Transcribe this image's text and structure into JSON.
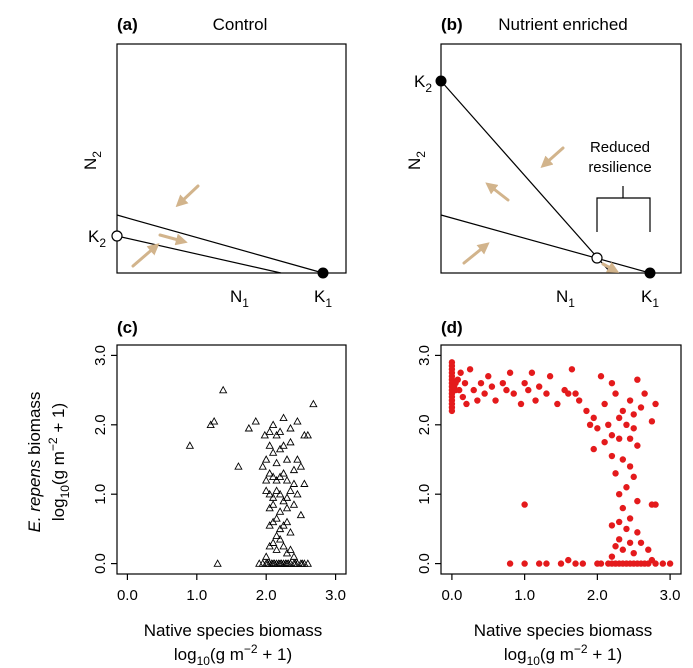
{
  "colors": {
    "arrow": "#d2b48c",
    "native_points": "#e41a1c",
    "control_points": "#000000"
  },
  "panel_a": {
    "letter": "(a)",
    "title": "Control",
    "x_symbol": "N",
    "x_sub": "1",
    "y_symbol": "N",
    "y_sub": "2",
    "k1_label": "K",
    "k1_sub": "1",
    "k2_label": "K",
    "k2_sub": "2"
  },
  "panel_b": {
    "letter": "(b)",
    "title": "Nutrient enriched",
    "x_symbol": "N",
    "x_sub": "1",
    "y_symbol": "N",
    "y_sub": "2",
    "k1_label": "K",
    "k1_sub": "1",
    "k2_label": "K",
    "k2_sub": "2",
    "annotation_line1": "Reduced",
    "annotation_line2": "resilience"
  },
  "panel_c": {
    "letter": "(c)"
  },
  "panel_d": {
    "letter": "(d)"
  },
  "y_axis_title": {
    "species": "E. repens",
    "word": "biomass",
    "unit": "log",
    "unit_base": "10",
    "unit_rest": "(g m",
    "unit_exp": "−2",
    "unit_end": " + 1)"
  },
  "x_axis_title": {
    "line1": "Native species biomass",
    "unit": "log",
    "unit_base": "10",
    "unit_rest": "(g m",
    "unit_exp": "−2",
    "unit_end": " + 1)"
  },
  "chart_data": [
    {
      "panel": "c",
      "type": "scatter",
      "marker": "open-triangle",
      "xlim": [
        -0.15,
        3.15
      ],
      "ylim": [
        -0.15,
        3.15
      ],
      "x_ticks": [
        "0.0",
        "1.0",
        "2.0",
        "3.0"
      ],
      "y_ticks": [
        "0.0",
        "1.0",
        "2.0",
        "3.0"
      ],
      "points": [
        [
          0.9,
          1.7
        ],
        [
          1.2,
          2.0
        ],
        [
          1.25,
          2.05
        ],
        [
          1.38,
          2.5
        ],
        [
          1.3,
          0.0
        ],
        [
          1.6,
          1.4
        ],
        [
          1.75,
          1.95
        ],
        [
          1.85,
          2.05
        ],
        [
          1.98,
          1.85
        ],
        [
          2.05,
          1.9
        ],
        [
          2.1,
          2.0
        ],
        [
          2.15,
          1.85
        ],
        [
          2.2,
          1.9
        ],
        [
          2.25,
          2.1
        ],
        [
          2.35,
          1.95
        ],
        [
          2.45,
          2.05
        ],
        [
          2.0,
          1.5
        ],
        [
          2.05,
          1.7
        ],
        [
          2.1,
          1.6
        ],
        [
          2.15,
          1.45
        ],
        [
          2.2,
          1.65
        ],
        [
          2.25,
          1.7
        ],
        [
          2.3,
          1.5
        ],
        [
          2.35,
          1.75
        ],
        [
          2.4,
          1.35
        ],
        [
          2.5,
          1.4
        ],
        [
          2.55,
          1.85
        ],
        [
          2.6,
          1.85
        ],
        [
          2.68,
          2.3
        ],
        [
          2.45,
          1.5
        ],
        [
          1.95,
          1.4
        ],
        [
          2.05,
          1.3
        ],
        [
          2.0,
          1.2
        ],
        [
          2.1,
          1.25
        ],
        [
          2.15,
          1.2
        ],
        [
          2.2,
          1.25
        ],
        [
          2.25,
          1.3
        ],
        [
          2.3,
          1.2
        ],
        [
          2.4,
          1.15
        ],
        [
          2.55,
          1.15
        ],
        [
          2.0,
          1.05
        ],
        [
          2.05,
          1.0
        ],
        [
          2.1,
          0.95
        ],
        [
          2.15,
          1.05
        ],
        [
          2.2,
          1.0
        ],
        [
          2.3,
          0.95
        ],
        [
          2.35,
          1.05
        ],
        [
          2.45,
          1.0
        ],
        [
          2.05,
          0.8
        ],
        [
          2.1,
          0.85
        ],
        [
          2.2,
          0.75
        ],
        [
          2.25,
          0.9
        ],
        [
          2.3,
          0.8
        ],
        [
          2.4,
          0.85
        ],
        [
          2.5,
          0.7
        ],
        [
          2.15,
          0.65
        ],
        [
          2.05,
          0.55
        ],
        [
          2.1,
          0.6
        ],
        [
          2.2,
          0.5
        ],
        [
          2.25,
          0.55
        ],
        [
          2.3,
          0.6
        ],
        [
          2.35,
          0.45
        ],
        [
          2.15,
          0.4
        ],
        [
          2.2,
          0.35
        ],
        [
          2.05,
          0.25
        ],
        [
          2.1,
          0.3
        ],
        [
          2.15,
          0.2
        ],
        [
          2.25,
          0.25
        ],
        [
          2.3,
          0.15
        ],
        [
          2.35,
          0.2
        ],
        [
          2.0,
          0.1
        ],
        [
          2.4,
          0.1
        ],
        [
          1.9,
          0.0
        ],
        [
          1.95,
          0.0
        ],
        [
          2.0,
          0.0
        ],
        [
          2.05,
          0.0
        ],
        [
          2.1,
          0.0
        ],
        [
          2.15,
          0.0
        ],
        [
          2.2,
          0.0
        ],
        [
          2.25,
          0.0
        ],
        [
          2.3,
          0.0
        ],
        [
          2.35,
          0.0
        ],
        [
          2.4,
          0.0
        ],
        [
          2.45,
          0.0
        ],
        [
          2.5,
          0.0
        ],
        [
          2.55,
          0.0
        ],
        [
          2.6,
          0.0
        ],
        [
          2.02,
          0.0
        ],
        [
          2.12,
          0.0
        ],
        [
          2.22,
          0.0
        ],
        [
          2.32,
          0.0
        ],
        [
          2.42,
          0.0
        ],
        [
          2.52,
          0.0
        ],
        [
          2.08,
          0.0
        ],
        [
          2.18,
          0.0
        ],
        [
          2.28,
          0.0
        ]
      ]
    },
    {
      "panel": "d",
      "type": "scatter",
      "marker": "filled-circle",
      "xlim": [
        -0.15,
        3.15
      ],
      "ylim": [
        -0.15,
        3.15
      ],
      "x_ticks": [
        "0.0",
        "1.0",
        "2.0",
        "3.0"
      ],
      "y_ticks": [
        "0.0",
        "1.0",
        "2.0",
        "3.0"
      ],
      "points": [
        [
          0.0,
          2.9
        ],
        [
          0.0,
          2.85
        ],
        [
          0.0,
          2.8
        ],
        [
          0.0,
          2.75
        ],
        [
          0.0,
          2.7
        ],
        [
          0.0,
          2.65
        ],
        [
          0.0,
          2.6
        ],
        [
          0.0,
          2.55
        ],
        [
          0.0,
          2.5
        ],
        [
          0.0,
          2.45
        ],
        [
          0.0,
          2.4
        ],
        [
          0.0,
          2.35
        ],
        [
          0.0,
          2.3
        ],
        [
          0.0,
          2.25
        ],
        [
          0.0,
          2.2
        ],
        [
          0.02,
          2.62
        ],
        [
          0.03,
          2.55
        ],
        [
          0.05,
          2.6
        ],
        [
          0.05,
          2.5
        ],
        [
          0.08,
          2.65
        ],
        [
          0.1,
          2.5
        ],
        [
          0.12,
          2.75
        ],
        [
          0.15,
          2.4
        ],
        [
          0.18,
          2.6
        ],
        [
          0.2,
          2.3
        ],
        [
          0.25,
          2.8
        ],
        [
          0.3,
          2.5
        ],
        [
          0.35,
          2.35
        ],
        [
          0.4,
          2.6
        ],
        [
          0.45,
          2.45
        ],
        [
          0.5,
          2.7
        ],
        [
          0.55,
          2.55
        ],
        [
          0.6,
          2.35
        ],
        [
          0.7,
          2.6
        ],
        [
          0.75,
          2.5
        ],
        [
          0.8,
          2.75
        ],
        [
          0.85,
          2.45
        ],
        [
          0.95,
          2.3
        ],
        [
          1.0,
          2.6
        ],
        [
          1.05,
          2.5
        ],
        [
          1.1,
          2.75
        ],
        [
          1.15,
          2.35
        ],
        [
          1.2,
          2.55
        ],
        [
          1.3,
          2.45
        ],
        [
          1.35,
          2.7
        ],
        [
          1.45,
          2.3
        ],
        [
          1.55,
          2.5
        ],
        [
          1.6,
          2.45
        ],
        [
          1.65,
          2.8
        ],
        [
          1.7,
          2.45
        ],
        [
          1.75,
          2.35
        ],
        [
          1.85,
          2.2
        ],
        [
          1.9,
          2.0
        ],
        [
          1.95,
          2.1
        ],
        [
          2.0,
          1.95
        ],
        [
          2.05,
          2.7
        ],
        [
          2.1,
          2.3
        ],
        [
          2.15,
          2.0
        ],
        [
          2.2,
          2.6
        ],
        [
          2.25,
          2.45
        ],
        [
          2.3,
          2.1
        ],
        [
          2.35,
          2.2
        ],
        [
          2.45,
          2.35
        ],
        [
          2.5,
          2.15
        ],
        [
          2.55,
          2.65
        ],
        [
          2.6,
          2.25
        ],
        [
          2.65,
          2.45
        ],
        [
          2.75,
          2.05
        ],
        [
          2.8,
          2.3
        ],
        [
          2.5,
          1.95
        ],
        [
          2.4,
          2.0
        ],
        [
          2.2,
          1.85
        ],
        [
          1.0,
          0.85
        ],
        [
          0.8,
          0.0
        ],
        [
          1.0,
          0.0
        ],
        [
          1.2,
          0.0
        ],
        [
          1.7,
          0.0
        ],
        [
          1.8,
          0.0
        ],
        [
          1.95,
          1.65
        ],
        [
          2.1,
          1.75
        ],
        [
          2.3,
          1.8
        ],
        [
          2.45,
          1.8
        ],
        [
          2.55,
          1.7
        ],
        [
          2.2,
          1.55
        ],
        [
          2.35,
          1.5
        ],
        [
          2.45,
          1.4
        ],
        [
          2.25,
          1.3
        ],
        [
          2.5,
          1.25
        ],
        [
          2.4,
          1.1
        ],
        [
          2.3,
          1.0
        ],
        [
          2.55,
          0.9
        ],
        [
          2.75,
          0.85
        ],
        [
          2.8,
          0.85
        ],
        [
          2.35,
          0.8
        ],
        [
          2.45,
          0.65
        ],
        [
          2.3,
          0.6
        ],
        [
          2.2,
          0.55
        ],
        [
          2.4,
          0.5
        ],
        [
          2.55,
          0.45
        ],
        [
          2.3,
          0.35
        ],
        [
          2.45,
          0.3
        ],
        [
          2.25,
          0.25
        ],
        [
          2.35,
          0.2
        ],
        [
          2.5,
          0.15
        ],
        [
          2.6,
          0.3
        ],
        [
          2.7,
          0.2
        ],
        [
          2.2,
          0.1
        ],
        [
          2.0,
          0.0
        ],
        [
          2.05,
          0.0
        ],
        [
          2.15,
          0.0
        ],
        [
          2.2,
          0.0
        ],
        [
          2.25,
          0.0
        ],
        [
          2.3,
          0.0
        ],
        [
          2.35,
          0.0
        ],
        [
          2.4,
          0.0
        ],
        [
          2.45,
          0.0
        ],
        [
          2.5,
          0.0
        ],
        [
          2.55,
          0.0
        ],
        [
          2.6,
          0.0
        ],
        [
          2.65,
          0.0
        ],
        [
          2.7,
          0.0
        ],
        [
          2.8,
          0.0
        ],
        [
          2.9,
          0.0
        ],
        [
          3.0,
          0.0
        ],
        [
          1.3,
          0.0
        ],
        [
          1.5,
          0.0
        ],
        [
          1.6,
          0.05
        ],
        [
          2.75,
          0.05
        ]
      ]
    }
  ]
}
